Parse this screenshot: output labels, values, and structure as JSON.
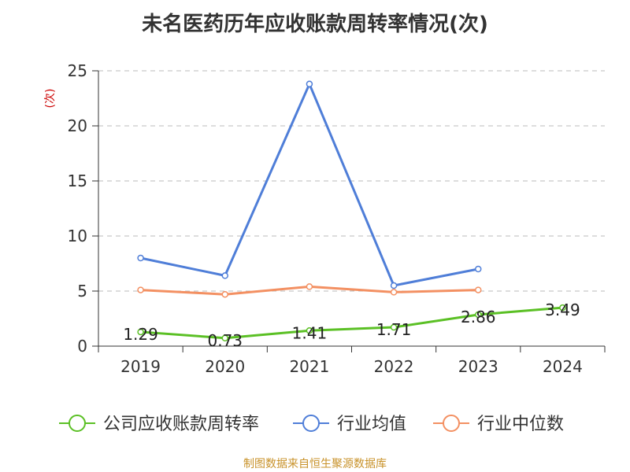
{
  "chart_title": "未名医药历年应收账款周转率情况(次)",
  "source_text": "制图数据来自恒生聚源数据库",
  "colors": {
    "title": "#333333",
    "axis": "#333333",
    "grid": "#bbbbbb",
    "unit": "#cc0000",
    "source": "#c8922a",
    "company": "#5bc025",
    "industry_avg": "#4f7ed8",
    "industry_median": "#f39062"
  },
  "chart_data": {
    "type": "line",
    "title": "未名医药历年应收账款周转率情况(次)",
    "ylabel": "(次)",
    "xlabel": "",
    "ylim": [
      0,
      25
    ],
    "yticks": [
      0,
      5,
      10,
      15,
      20,
      25
    ],
    "categories": [
      "2019",
      "2020",
      "2021",
      "2022",
      "2023",
      "2024"
    ],
    "grid": true,
    "legend_position": "bottom",
    "series": [
      {
        "name": "公司应收账款周转率",
        "color_key": "company",
        "values": [
          1.29,
          0.73,
          1.41,
          1.71,
          2.86,
          3.49
        ],
        "labels": [
          "1.29",
          "0.73",
          "1.41",
          "1.71",
          "2.86",
          "3.49"
        ],
        "show_labels": true
      },
      {
        "name": "行业均值",
        "color_key": "industry_avg",
        "values": [
          8.0,
          6.4,
          23.8,
          5.5,
          7.0,
          null
        ],
        "show_labels": false
      },
      {
        "name": "行业中位数",
        "color_key": "industry_median",
        "values": [
          5.1,
          4.7,
          5.4,
          4.9,
          5.1,
          null
        ],
        "show_labels": false
      }
    ]
  }
}
